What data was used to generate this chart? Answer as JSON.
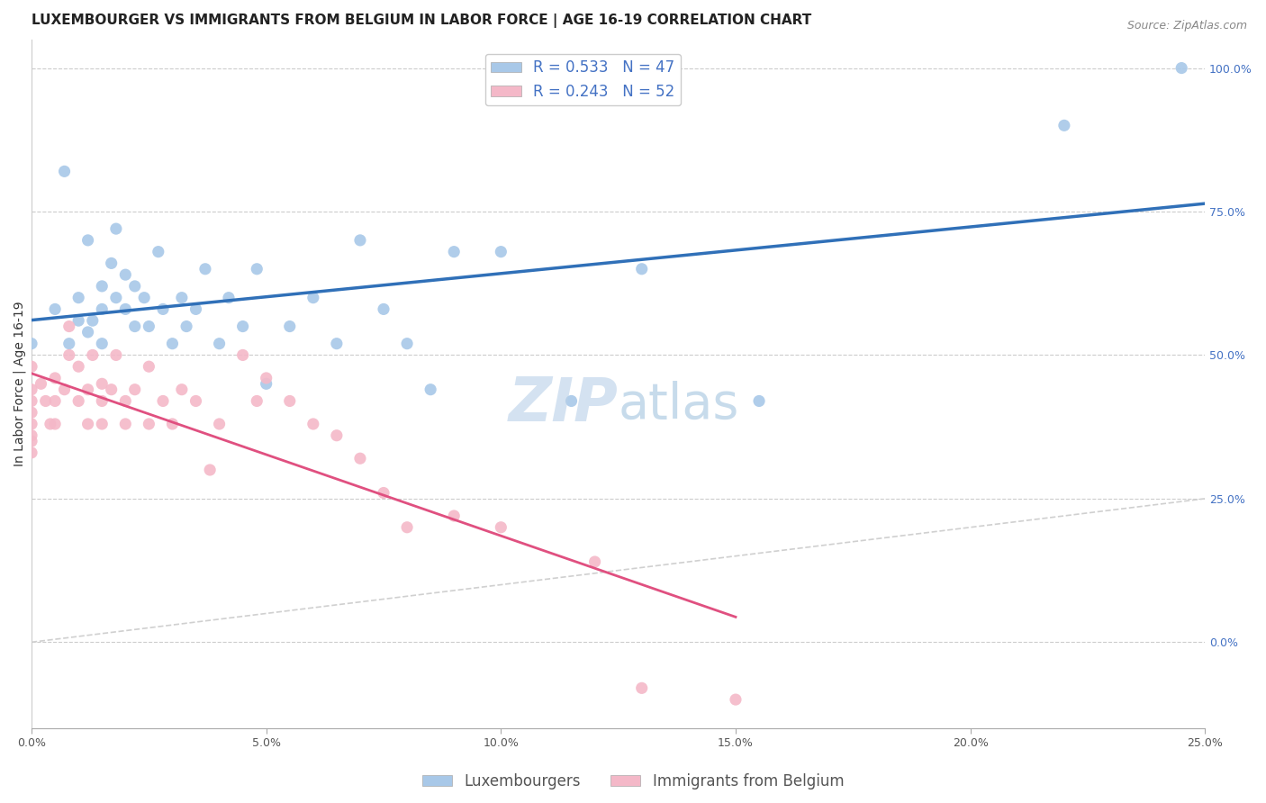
{
  "title": "LUXEMBOURGER VS IMMIGRANTS FROM BELGIUM IN LABOR FORCE | AGE 16-19 CORRELATION CHART",
  "source": "Source: ZipAtlas.com",
  "ylabel": "In Labor Force | Age 16-19",
  "xlim": [
    0.0,
    0.25
  ],
  "ylim": [
    -0.15,
    1.05
  ],
  "right_yticks": [
    0.0,
    0.25,
    0.5,
    0.75,
    1.0
  ],
  "right_yticklabels": [
    "0.0%",
    "25.0%",
    "50.0%",
    "75.0%",
    "100.0%"
  ],
  "xticks": [
    0.0,
    0.05,
    0.1,
    0.15,
    0.2,
    0.25
  ],
  "xticklabels": [
    "0.0%",
    "5.0%",
    "10.0%",
    "15.0%",
    "20.0%",
    "25.0%"
  ],
  "blue_color": "#a8c8e8",
  "pink_color": "#f4b8c8",
  "blue_line_color": "#3070b8",
  "pink_line_color": "#e05080",
  "identity_line_color": "#d0d0d0",
  "R_blue": 0.533,
  "N_blue": 47,
  "R_pink": 0.243,
  "N_pink": 52,
  "legend_label_blue": "Luxembourgers",
  "legend_label_pink": "Immigrants from Belgium",
  "blue_scatter_x": [
    0.0,
    0.005,
    0.007,
    0.008,
    0.01,
    0.01,
    0.012,
    0.012,
    0.013,
    0.015,
    0.015,
    0.015,
    0.017,
    0.018,
    0.018,
    0.02,
    0.02,
    0.022,
    0.022,
    0.024,
    0.025,
    0.027,
    0.028,
    0.03,
    0.032,
    0.033,
    0.035,
    0.037,
    0.04,
    0.042,
    0.045,
    0.048,
    0.05,
    0.055,
    0.06,
    0.065,
    0.07,
    0.075,
    0.08,
    0.085,
    0.09,
    0.1,
    0.115,
    0.13,
    0.155,
    0.22,
    0.245
  ],
  "blue_scatter_y": [
    0.52,
    0.58,
    0.82,
    0.52,
    0.56,
    0.6,
    0.54,
    0.7,
    0.56,
    0.52,
    0.58,
    0.62,
    0.66,
    0.72,
    0.6,
    0.58,
    0.64,
    0.55,
    0.62,
    0.6,
    0.55,
    0.68,
    0.58,
    0.52,
    0.6,
    0.55,
    0.58,
    0.65,
    0.52,
    0.6,
    0.55,
    0.65,
    0.45,
    0.55,
    0.6,
    0.52,
    0.7,
    0.58,
    0.52,
    0.44,
    0.68,
    0.68,
    0.42,
    0.65,
    0.42,
    0.9,
    1.0
  ],
  "pink_scatter_x": [
    0.0,
    0.0,
    0.0,
    0.0,
    0.0,
    0.0,
    0.0,
    0.0,
    0.002,
    0.003,
    0.004,
    0.005,
    0.005,
    0.005,
    0.007,
    0.008,
    0.008,
    0.01,
    0.01,
    0.012,
    0.012,
    0.013,
    0.015,
    0.015,
    0.015,
    0.017,
    0.018,
    0.02,
    0.02,
    0.022,
    0.025,
    0.025,
    0.028,
    0.03,
    0.032,
    0.035,
    0.038,
    0.04,
    0.045,
    0.048,
    0.05,
    0.055,
    0.06,
    0.065,
    0.07,
    0.075,
    0.08,
    0.09,
    0.1,
    0.12,
    0.13,
    0.15
  ],
  "pink_scatter_y": [
    0.48,
    0.44,
    0.42,
    0.4,
    0.38,
    0.36,
    0.35,
    0.33,
    0.45,
    0.42,
    0.38,
    0.46,
    0.42,
    0.38,
    0.44,
    0.5,
    0.55,
    0.48,
    0.42,
    0.38,
    0.44,
    0.5,
    0.45,
    0.42,
    0.38,
    0.44,
    0.5,
    0.42,
    0.38,
    0.44,
    0.48,
    0.38,
    0.42,
    0.38,
    0.44,
    0.42,
    0.3,
    0.38,
    0.5,
    0.42,
    0.46,
    0.42,
    0.38,
    0.36,
    0.32,
    0.26,
    0.2,
    0.22,
    0.2,
    0.14,
    -0.08,
    -0.1
  ],
  "watermark_zip": "ZIP",
  "watermark_atlas": "atlas",
  "title_fontsize": 11,
  "axis_label_fontsize": 10,
  "tick_fontsize": 9,
  "legend_fontsize": 12,
  "source_fontsize": 9
}
